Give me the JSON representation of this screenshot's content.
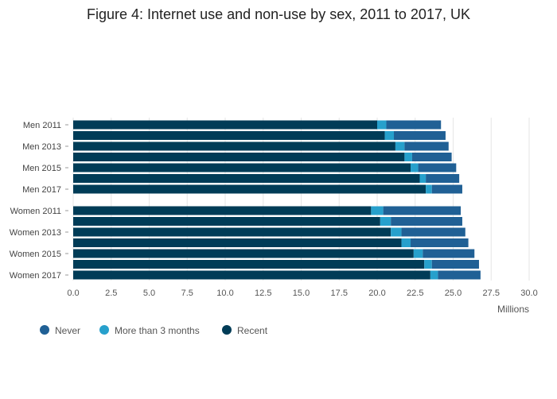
{
  "chart_data": {
    "type": "bar",
    "orientation": "horizontal",
    "stacked": true,
    "title": "Figure 4: Internet use and non-use by sex, 2011 to 2017, UK",
    "xlabel": "Millions",
    "ylabel": "",
    "xlim": [
      0,
      30
    ],
    "x_ticks": [
      "0.0",
      "2.5",
      "5.0",
      "7.5",
      "10.0",
      "12.5",
      "15.0",
      "17.5",
      "20.0",
      "22.5",
      "25.0",
      "27.5",
      "30.0"
    ],
    "grid": true,
    "legend_position": "bottom-left",
    "categories": [
      "Men 2011",
      "Men 2012",
      "Men 2013",
      "Men 2014",
      "Men 2015",
      "Men 2016",
      "Men 2017",
      "Women 2011",
      "Women 2012",
      "Women 2013",
      "Women 2014",
      "Women 2015",
      "Women 2016",
      "Women 2017"
    ],
    "category_labels": [
      "Men 2011",
      "",
      "Men 2013",
      "",
      "Men 2015",
      "",
      "Men 2017",
      "Women 2011",
      "",
      "Women 2013",
      "",
      "Women 2015",
      "",
      "Women 2017"
    ],
    "series": [
      {
        "name": "Recent",
        "color": "#003c57",
        "values": [
          20.0,
          20.5,
          21.2,
          21.8,
          22.2,
          22.8,
          23.2,
          19.6,
          20.2,
          20.9,
          21.6,
          22.4,
          23.1,
          23.5
        ]
      },
      {
        "name": "More than 3 months",
        "color": "#27a0cc",
        "values": [
          0.6,
          0.6,
          0.6,
          0.5,
          0.5,
          0.4,
          0.4,
          0.8,
          0.7,
          0.7,
          0.6,
          0.6,
          0.5,
          0.5
        ]
      },
      {
        "name": "Never",
        "color": "#206095",
        "values": [
          3.6,
          3.4,
          2.9,
          2.6,
          2.5,
          2.2,
          2.0,
          5.1,
          4.7,
          4.2,
          3.8,
          3.4,
          3.1,
          2.8
        ]
      }
    ],
    "legend_order": [
      "Never",
      "More than 3 months",
      "Recent"
    ]
  }
}
